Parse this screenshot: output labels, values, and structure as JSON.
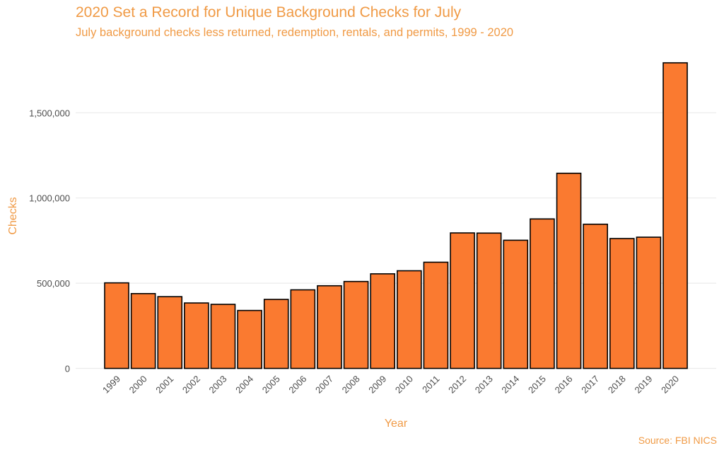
{
  "chart_data": {
    "type": "bar",
    "title": "2020 Set a Record for Unique Background Checks for July",
    "subtitle": "July background checks less returned, redemption, rentals, and permits, 1999 - 2020",
    "caption": "Source: FBI NICS",
    "xlabel": "Year",
    "ylabel": "Checks",
    "categories": [
      "1999",
      "2000",
      "2001",
      "2002",
      "2003",
      "2004",
      "2005",
      "2006",
      "2007",
      "2008",
      "2009",
      "2010",
      "2011",
      "2012",
      "2013",
      "2014",
      "2015",
      "2016",
      "2017",
      "2018",
      "2019",
      "2020"
    ],
    "values": [
      502000,
      439000,
      421000,
      384000,
      376000,
      340000,
      405000,
      461000,
      485000,
      510000,
      555000,
      573000,
      623000,
      795000,
      794000,
      752000,
      877000,
      1145000,
      846000,
      762000,
      770000,
      1793000
    ],
    "yticks": [
      0,
      500000,
      1000000,
      1500000
    ],
    "ytick_labels": [
      "0",
      "500,000",
      "1,000,000",
      "1,500,000"
    ],
    "ylim": [
      0,
      1850000
    ],
    "grid": true,
    "legend": "none",
    "colors": {
      "bar_fill": "#FA7A30",
      "bar_outline": "#000000",
      "text_accent": "#F09A45",
      "grid": "#EBEBEB"
    }
  }
}
